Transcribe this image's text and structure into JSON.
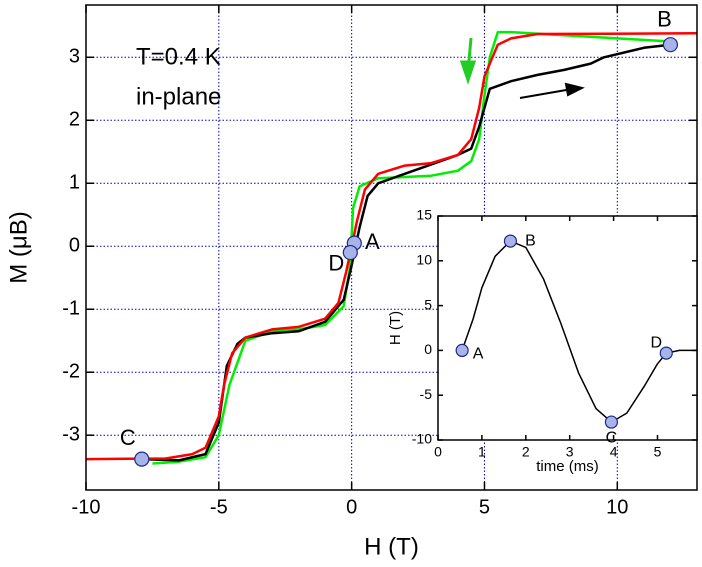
{
  "chart_data": [
    {
      "type": "line",
      "xlabel": "H (T)",
      "ylabel": "M (μB)",
      "xlim": [
        -10,
        13
      ],
      "ylim": [
        -3.87,
        3.83
      ],
      "xticks": [
        -10,
        -5,
        0,
        5,
        10
      ],
      "yticks": [
        -3,
        -2,
        -1,
        0,
        1,
        2,
        3
      ],
      "grid": true,
      "annotations": [
        "T=0.4 K",
        "in-plane"
      ],
      "series": [
        {
          "color": "#00ee00",
          "x": [
            12,
            10,
            8,
            6,
            5.5,
            5.2,
            5,
            4.8,
            4.5,
            4,
            3,
            2,
            1,
            0.3,
            0.05,
            -0.05,
            -0.3,
            -1,
            -2,
            -3,
            -4,
            -4.6,
            -5,
            -5.5,
            -6.5,
            -7.5
          ],
          "values": [
            3.25,
            3.3,
            3.35,
            3.4,
            3.4,
            3.0,
            2.4,
            1.7,
            1.35,
            1.2,
            1.12,
            1.1,
            1.08,
            0.95,
            0.6,
            -0.3,
            -0.95,
            -1.25,
            -1.32,
            -1.35,
            -1.5,
            -2.2,
            -3.0,
            -3.35,
            -3.42,
            -3.45
          ]
        },
        {
          "color": "#000000",
          "x": [
            -7.9,
            -6.5,
            -5.5,
            -5,
            -4.7,
            -4.3,
            -4,
            -3,
            -2,
            -1,
            -0.3,
            0,
            0.3,
            0.6,
            1,
            2,
            3,
            4,
            4.5,
            4.8,
            5.2,
            6,
            7,
            8,
            9,
            9.5,
            11,
            12
          ],
          "values": [
            -3.38,
            -3.4,
            -3.3,
            -2.8,
            -1.9,
            -1.55,
            -1.45,
            -1.38,
            -1.35,
            -1.2,
            -0.85,
            -0.3,
            0.3,
            0.8,
            1.0,
            1.15,
            1.3,
            1.45,
            1.55,
            1.9,
            2.5,
            2.62,
            2.72,
            2.8,
            2.9,
            3.0,
            3.15,
            3.2
          ]
        },
        {
          "color": "#ff0000",
          "x": [
            -10,
            -7,
            -6,
            -5.5,
            -5,
            -4.8,
            -4.5,
            -4,
            -3,
            -2,
            -1,
            -0.5,
            -0.2,
            0,
            0.2,
            0.5,
            1,
            2,
            3,
            4,
            4.5,
            4.8,
            5,
            5.5,
            6,
            7,
            13
          ],
          "values": [
            -3.38,
            -3.37,
            -3.3,
            -3.2,
            -2.7,
            -2.2,
            -1.7,
            -1.45,
            -1.32,
            -1.28,
            -1.15,
            -0.9,
            -0.4,
            0,
            0.4,
            0.9,
            1.15,
            1.28,
            1.32,
            1.45,
            1.7,
            2.2,
            2.7,
            3.2,
            3.3,
            3.37,
            3.38
          ]
        }
      ],
      "points": [
        {
          "label": "A",
          "x": 0.1,
          "y": 0.05
        },
        {
          "label": "B",
          "x": 12,
          "y": 3.2
        },
        {
          "label": "C",
          "x": -7.9,
          "y": -3.38
        },
        {
          "label": "D",
          "x": -0.05,
          "y": -0.1
        }
      ]
    },
    {
      "type": "line",
      "xlabel": "time (ms)",
      "ylabel": "H (T)",
      "xlim": [
        0,
        5.9
      ],
      "ylim": [
        -10,
        15
      ],
      "xticks": [
        0,
        1,
        2,
        3,
        4,
        5
      ],
      "yticks": [
        -10,
        -5,
        0,
        5,
        10,
        15
      ],
      "grid": false,
      "series": [
        {
          "color": "#000000",
          "x": [
            0.55,
            0.8,
            1.0,
            1.3,
            1.65,
            2.0,
            2.4,
            2.8,
            3.2,
            3.6,
            3.95,
            4.3,
            4.7,
            5.0,
            5.2,
            5.5,
            5.9
          ],
          "values": [
            0,
            3.5,
            7,
            10.5,
            12.2,
            11.5,
            8,
            3,
            -2.5,
            -6.5,
            -8,
            -7,
            -4,
            -1.5,
            -0.3,
            0,
            0
          ]
        }
      ],
      "points": [
        {
          "label": "A",
          "x": 0.55,
          "y": 0
        },
        {
          "label": "B",
          "x": 1.65,
          "y": 12.2
        },
        {
          "label": "C",
          "x": 3.95,
          "y": -8
        },
        {
          "label": "D",
          "x": 5.2,
          "y": -0.3
        }
      ]
    }
  ]
}
